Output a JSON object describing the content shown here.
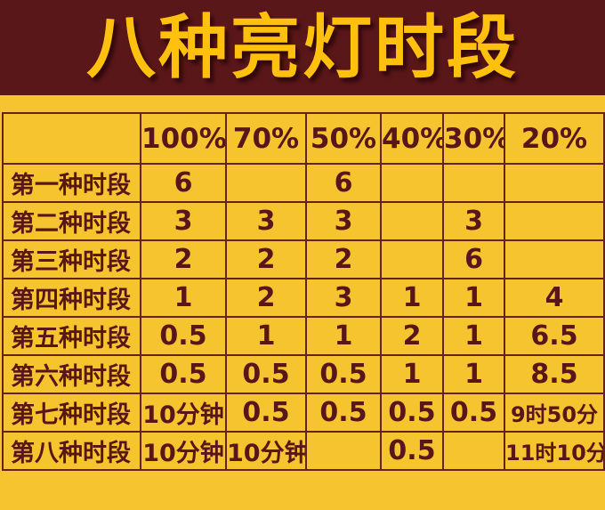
{
  "title": "八种亮灯时段",
  "colors": {
    "background": "#F5C42E",
    "banner": "#5A171A",
    "title_text": "#FFC10D",
    "table_border": "#63231C",
    "table_text": "#58161A"
  },
  "table": {
    "columns": [
      "",
      "100%",
      "70%",
      "50%",
      "40%",
      "30%",
      "20%"
    ],
    "rows": [
      {
        "label": "第一种时段",
        "values": [
          "6",
          "",
          "6",
          "",
          "",
          ""
        ]
      },
      {
        "label": "第二种时段",
        "values": [
          "3",
          "3",
          "3",
          "",
          "3",
          ""
        ]
      },
      {
        "label": "第三种时段",
        "values": [
          "2",
          "2",
          "2",
          "",
          "6",
          ""
        ]
      },
      {
        "label": "第四种时段",
        "values": [
          "1",
          "2",
          "3",
          "1",
          "1",
          "4"
        ]
      },
      {
        "label": "第五种时段",
        "values": [
          "0.5",
          "1",
          "1",
          "2",
          "1",
          "6.5"
        ]
      },
      {
        "label": "第六种时段",
        "values": [
          "0.5",
          "0.5",
          "0.5",
          "1",
          "1",
          "8.5"
        ]
      },
      {
        "label": "第七种时段",
        "values": [
          "10分钟",
          "0.5",
          "0.5",
          "0.5",
          "0.5",
          "9时50分"
        ]
      },
      {
        "label": "第八种时段",
        "values": [
          "10分钟",
          "10分钟",
          "",
          "0.5",
          "",
          "11时10分"
        ]
      }
    ]
  },
  "chart_data": {
    "type": "table",
    "title": "八种亮灯时段",
    "columns": [
      "100%",
      "70%",
      "50%",
      "40%",
      "30%",
      "20%"
    ],
    "row_labels": [
      "第一种时段",
      "第二种时段",
      "第三种时段",
      "第四种时段",
      "第五种时段",
      "第六种时段",
      "第七种时段",
      "第八种时段"
    ],
    "cells": [
      [
        "6",
        "",
        "6",
        "",
        "",
        ""
      ],
      [
        "3",
        "3",
        "3",
        "",
        "3",
        ""
      ],
      [
        "2",
        "2",
        "2",
        "",
        "6",
        ""
      ],
      [
        "1",
        "2",
        "3",
        "1",
        "1",
        "4"
      ],
      [
        "0.5",
        "1",
        "1",
        "2",
        "1",
        "6.5"
      ],
      [
        "0.5",
        "0.5",
        "0.5",
        "1",
        "1",
        "8.5"
      ],
      [
        "10分钟",
        "0.5",
        "0.5",
        "0.5",
        "0.5",
        "9时50分"
      ],
      [
        "10分钟",
        "10分钟",
        "",
        "0.5",
        "",
        "11时10分"
      ]
    ]
  }
}
